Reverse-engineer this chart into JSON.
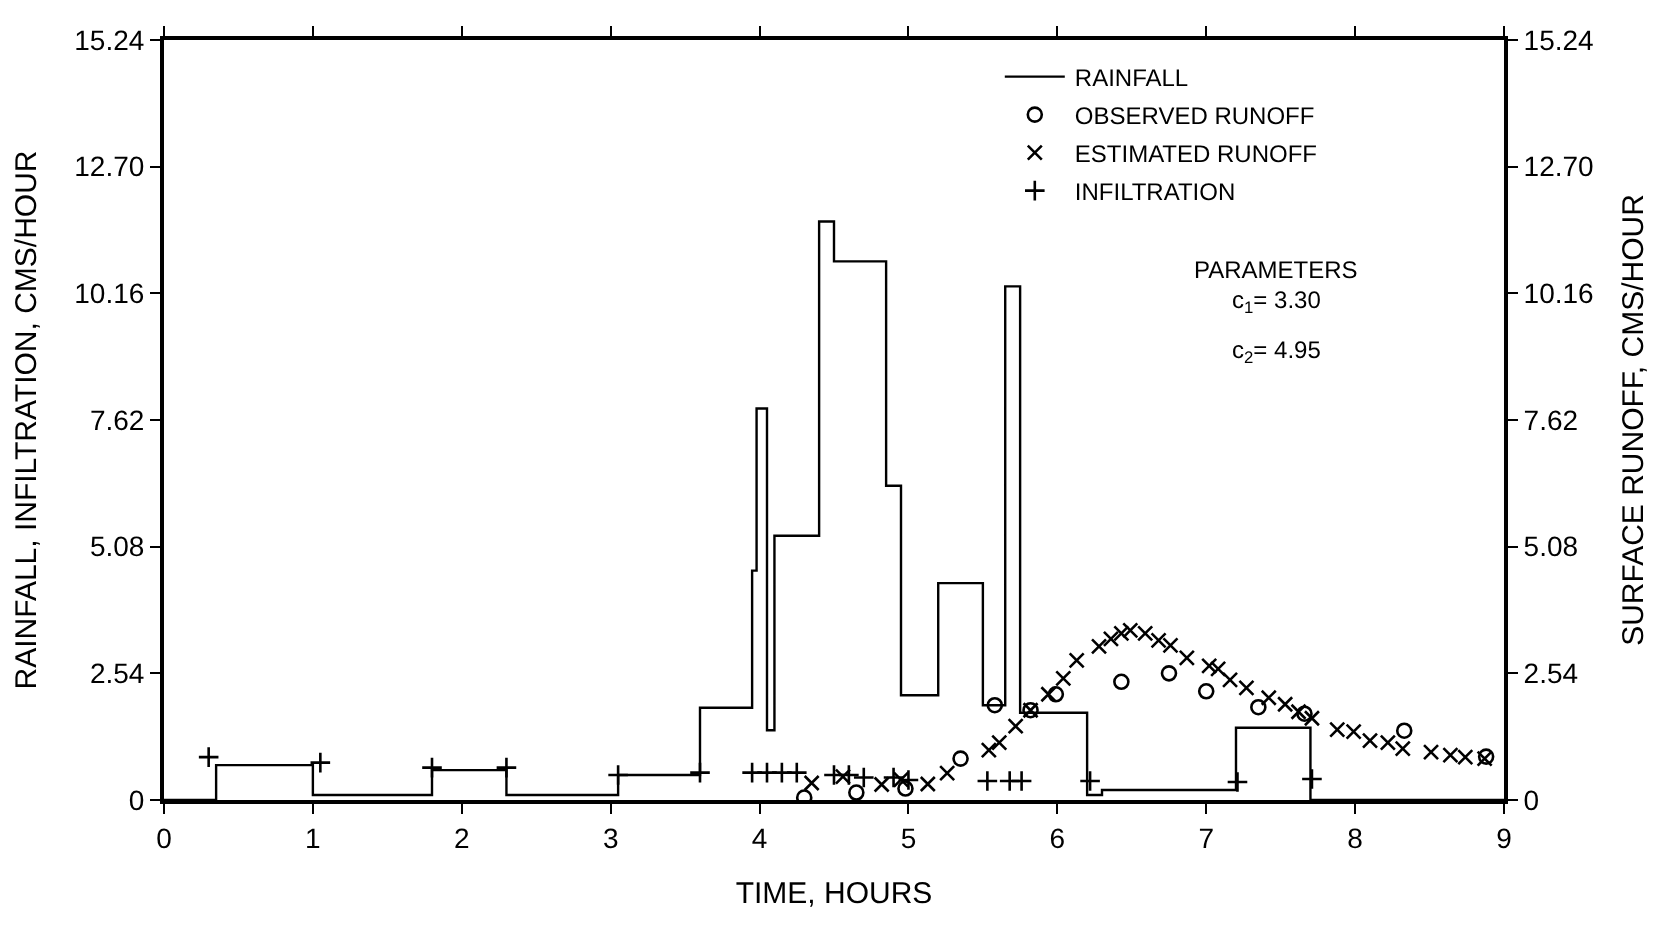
{
  "chart_data": {
    "type": "scatter",
    "xlabel": "TIME, HOURS",
    "ylabel": "RAINFALL, INFILTRATION, CMS/HOUR",
    "y2label": "SURFACE RUNOFF, CMS/HOUR",
    "xlim": [
      0,
      9
    ],
    "xticks": [
      0,
      1,
      2,
      3,
      4,
      5,
      6,
      7,
      8,
      9
    ],
    "ylim": [
      0,
      15.24
    ],
    "yticks": [
      0,
      2.54,
      5.08,
      7.62,
      10.16,
      {
        "value": 12.7,
        "label": "12.70"
      },
      15.24
    ],
    "y2lim": [
      0,
      15.24
    ],
    "y2ticks": [
      0,
      2.54,
      5.08,
      7.62,
      10.16,
      {
        "value": 12.7,
        "label": "12.70"
      },
      15.24
    ],
    "legend": "top right",
    "annotations": [
      "PARAMETERS",
      "c$_{1}$= 3.30",
      "c$_{2}$= 4.95"
    ],
    "series": [
      {
        "name": "RAINFALL",
        "type": "step",
        "color": "#000000",
        "marker": "none",
        "line_style": "solid",
        "x": [
          0,
          0.35,
          1.0,
          1.8,
          2.3,
          3.05,
          3.6,
          3.95,
          3.98,
          4.05,
          4.1,
          4.4,
          4.5,
          4.85,
          4.95,
          5.2,
          5.5,
          5.65,
          5.75,
          6.2,
          6.3,
          7.2,
          7.7,
          9
        ],
        "values": [
          0,
          0.7,
          0.1,
          0.6,
          0.1,
          0.5,
          1.85,
          4.6,
          7.85,
          1.4,
          5.3,
          11.6,
          10.8,
          6.3,
          2.1,
          4.35,
          1.9,
          10.3,
          1.75,
          0.1,
          0.2,
          1.45,
          0,
          0
        ]
      },
      {
        "name": "OBSERVED RUNOFF",
        "axis": "y2",
        "color": "#000000",
        "marker": "circle",
        "x": [
          4.3,
          4.65,
          4.98,
          5.35,
          5.58,
          5.82,
          5.99,
          6.43,
          6.75,
          7.0,
          7.35,
          7.66,
          8.33,
          8.88
        ],
        "values": [
          0.05,
          0.15,
          0.23,
          0.83,
          1.9,
          1.8,
          2.12,
          2.37,
          2.54,
          2.18,
          1.86,
          1.73,
          1.39,
          0.87
        ]
      },
      {
        "name": "ESTIMATED RUNOFF",
        "axis": "y2",
        "color": "#000000",
        "marker": "cross",
        "x": [
          4.35,
          4.56,
          4.82,
          4.95,
          5.13,
          5.26,
          5.54,
          5.61,
          5.72,
          5.82,
          5.94,
          6.04,
          6.13,
          6.28,
          6.36,
          6.43,
          6.49,
          6.59,
          6.68,
          6.76,
          6.87,
          7.02,
          7.08,
          7.16,
          7.27,
          7.42,
          7.53,
          7.62,
          7.71,
          7.88,
          7.99,
          8.1,
          8.22,
          8.32,
          8.51,
          8.64,
          8.74,
          8.87
        ],
        "values": [
          0.34,
          0.47,
          0.31,
          0.41,
          0.32,
          0.54,
          1.0,
          1.15,
          1.48,
          1.8,
          2.12,
          2.44,
          2.8,
          3.08,
          3.23,
          3.34,
          3.4,
          3.34,
          3.2,
          3.1,
          2.85,
          2.69,
          2.63,
          2.41,
          2.25,
          2.05,
          1.92,
          1.77,
          1.64,
          1.41,
          1.37,
          1.19,
          1.15,
          1.03,
          0.96,
          0.9,
          0.86,
          0.83
        ]
      },
      {
        "name": "INFILTRATION",
        "color": "#000000",
        "marker": "plus",
        "x": [
          0.3,
          1.05,
          1.8,
          2.3,
          3.05,
          3.6,
          3.95,
          4.05,
          4.15,
          4.25,
          4.5,
          4.6,
          4.7,
          4.9,
          5.0,
          5.53,
          5.68,
          5.76,
          6.22,
          7.21,
          7.71
        ],
        "values": [
          0.86,
          0.75,
          0.65,
          0.65,
          0.5,
          0.55,
          0.55,
          0.55,
          0.55,
          0.55,
          0.5,
          0.5,
          0.45,
          0.45,
          0.4,
          0.38,
          0.38,
          0.38,
          0.38,
          0.36,
          0.42
        ]
      }
    ]
  }
}
